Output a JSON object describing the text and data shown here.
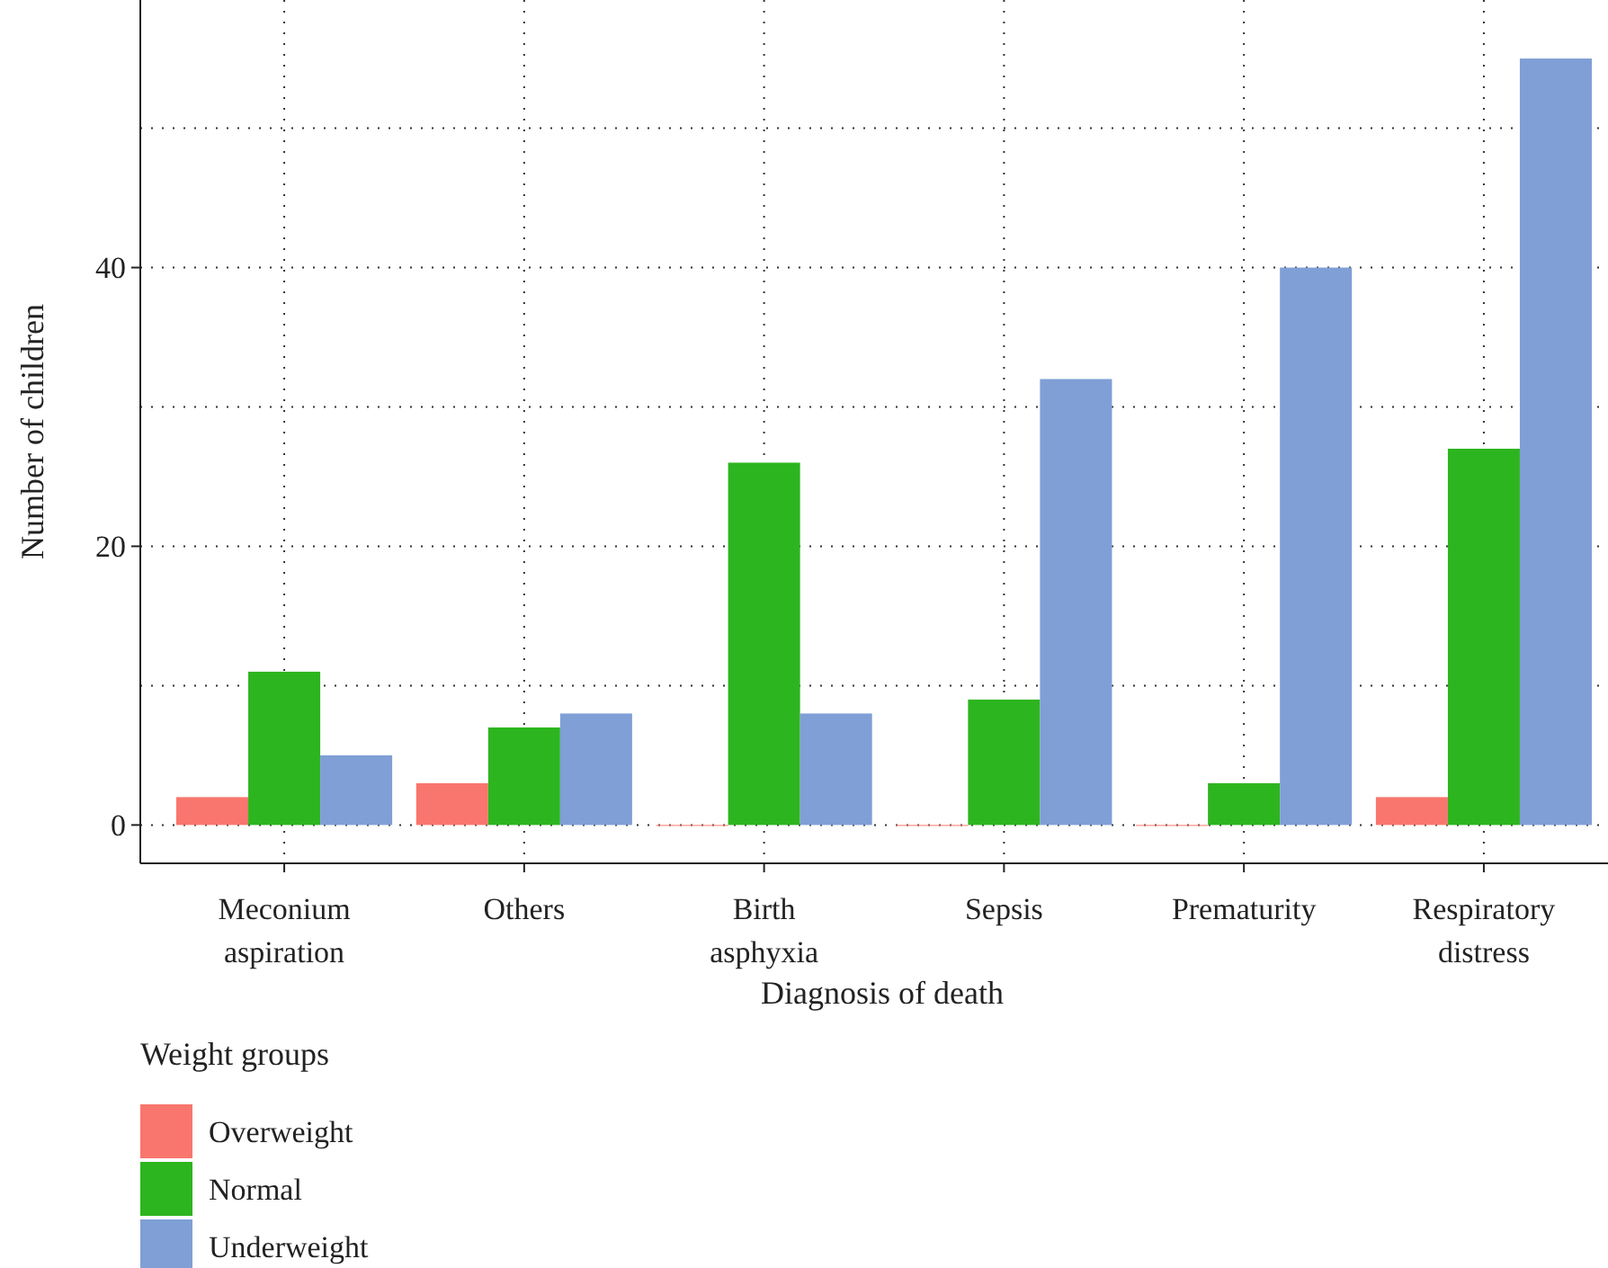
{
  "chart_data": {
    "type": "bar",
    "xlabel": "Diagnosis of death",
    "ylabel": "Number of children",
    "legend_title": "Weight groups",
    "categories": [
      "Meconium aspiration",
      "Others",
      "Birth asphyxia",
      "Sepsis",
      "Prematurity",
      "Respiratory distress"
    ],
    "series": [
      {
        "name": "Overweight",
        "color": "#f8766d",
        "values": [
          2,
          3,
          0,
          0,
          0,
          2
        ]
      },
      {
        "name": "Normal",
        "color": "#2db51f",
        "values": [
          11,
          7,
          26,
          9,
          3,
          27
        ]
      },
      {
        "name": "Underweight",
        "color": "#7f9fd6",
        "values": [
          5,
          8,
          8,
          32,
          40,
          55
        ]
      }
    ],
    "ylim": [
      -2.75,
      59.2
    ],
    "yticks": [
      0,
      {
        "value": 10,
        "label": null
      },
      20,
      {
        "value": 30,
        "label": null
      },
      40,
      {
        "value": 50,
        "label": null
      }
    ],
    "grid": true,
    "legend": "bottom left"
  }
}
